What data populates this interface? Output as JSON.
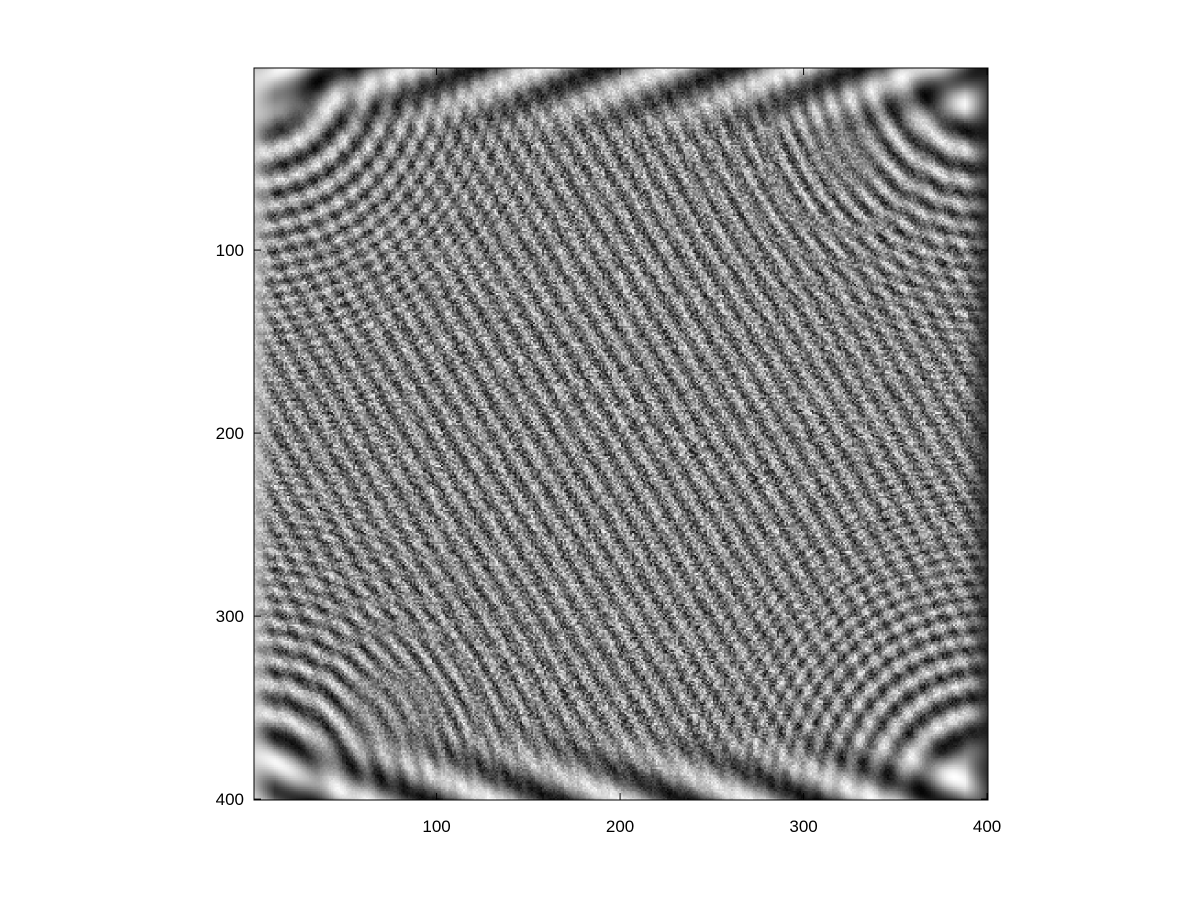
{
  "chart_data": {
    "type": "heatmap",
    "title": "",
    "xlabel": "",
    "ylabel": "",
    "colormap": "gray",
    "grid": false,
    "legend": "none",
    "xlim": [
      0.5,
      400.5
    ],
    "ylim": [
      0.5,
      400.5
    ],
    "y_direction": "reversed",
    "x_ticks": [
      100,
      200,
      300,
      400
    ],
    "y_ticks": [
      100,
      200,
      300,
      400
    ],
    "x_tick_labels": [
      "100",
      "200",
      "300",
      "400"
    ],
    "y_tick_labels": [
      "100",
      "200",
      "300",
      "400"
    ],
    "matrix_size": [
      400,
      400
    ],
    "pattern": "grayscale phase-wrapped interference pattern: dense speckled noise in the interior, fringe fans radiating from all four corners, bands of diagonal stripes along the top and bottom edges, and bright and dark vertical bands along the left and right edges",
    "colors": {
      "axis": "#000000",
      "background": "#ffffff",
      "cmap_low": "#000000",
      "cmap_high": "#ffffff"
    }
  }
}
